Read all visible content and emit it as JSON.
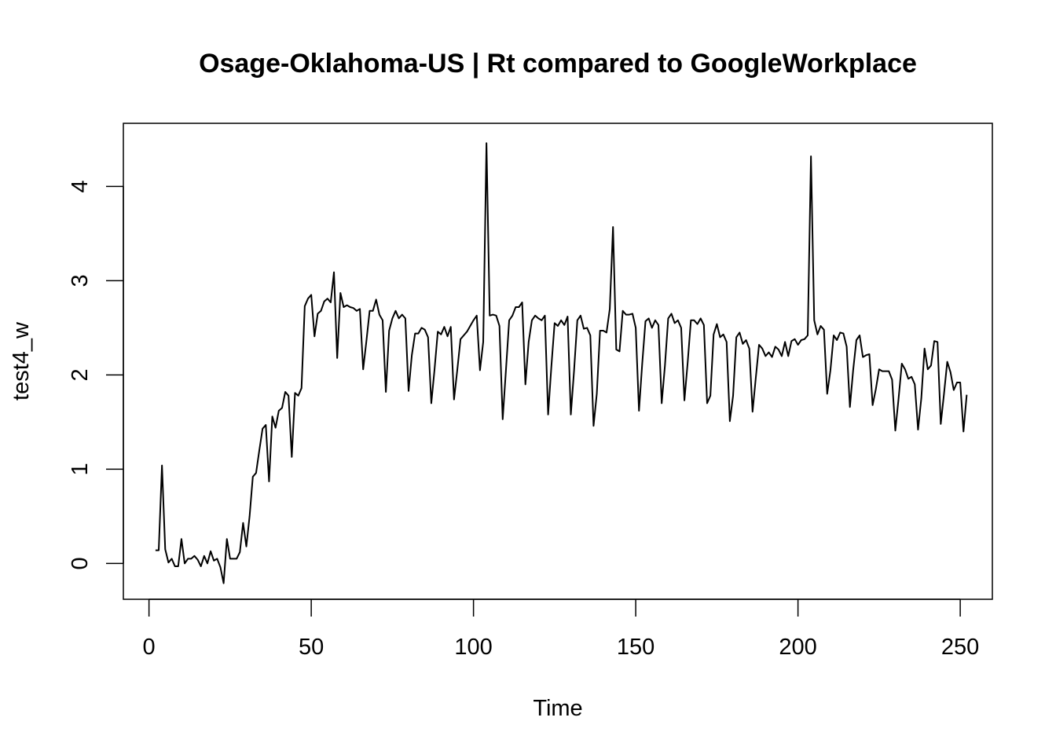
{
  "chart_data": {
    "type": "line",
    "title": "Osage-Oklahoma-US | Rt compared to GoogleWorkplace",
    "xlabel": "Time",
    "ylabel": "test4_w",
    "xlim": [
      -7.9,
      259.9
    ],
    "ylim": [
      -0.38,
      4.67
    ],
    "xticks": [
      0,
      50,
      100,
      150,
      200,
      250
    ],
    "yticks": [
      0,
      1,
      2,
      3,
      4
    ],
    "grid": false,
    "legend": "none",
    "series": [
      {
        "color": "#000000",
        "x_start": 2,
        "values": [
          0.14,
          0.14,
          1.04,
          0.15,
          0.01,
          0.05,
          -0.03,
          -0.03,
          0.26,
          0.0,
          0.05,
          0.05,
          0.08,
          0.04,
          -0.03,
          0.08,
          0.0,
          0.13,
          0.03,
          0.05,
          -0.04,
          -0.21,
          0.26,
          0.05,
          0.05,
          0.05,
          0.12,
          0.43,
          0.18,
          0.5,
          0.92,
          0.96,
          1.2,
          1.43,
          1.47,
          0.87,
          1.56,
          1.44,
          1.62,
          1.65,
          1.82,
          1.78,
          1.13,
          1.81,
          1.78,
          1.86,
          2.73,
          2.81,
          2.85,
          2.41,
          2.65,
          2.68,
          2.78,
          2.81,
          2.77,
          3.09,
          2.18,
          2.87,
          2.72,
          2.74,
          2.72,
          2.71,
          2.68,
          2.7,
          2.06,
          2.36,
          2.68,
          2.68,
          2.8,
          2.64,
          2.58,
          1.82,
          2.47,
          2.6,
          2.68,
          2.6,
          2.64,
          2.6,
          1.83,
          2.21,
          2.44,
          2.44,
          2.5,
          2.48,
          2.4,
          1.7,
          2.06,
          2.46,
          2.43,
          2.51,
          2.41,
          2.51,
          1.74,
          2.05,
          2.38,
          2.42,
          2.46,
          2.52,
          2.58,
          2.63,
          2.05,
          2.35,
          4.46,
          2.63,
          2.64,
          2.63,
          2.52,
          1.53,
          2.05,
          2.58,
          2.63,
          2.72,
          2.72,
          2.77,
          1.9,
          2.35,
          2.58,
          2.63,
          2.6,
          2.58,
          2.63,
          1.58,
          2.09,
          2.55,
          2.52,
          2.58,
          2.53,
          2.62,
          1.58,
          2.05,
          2.58,
          2.63,
          2.49,
          2.5,
          2.42,
          1.46,
          1.8,
          2.47,
          2.47,
          2.45,
          2.7,
          3.57,
          2.27,
          2.25,
          2.68,
          2.64,
          2.64,
          2.65,
          2.5,
          1.62,
          2.12,
          2.57,
          2.6,
          2.5,
          2.58,
          2.53,
          1.7,
          2.1,
          2.6,
          2.65,
          2.55,
          2.58,
          2.5,
          1.73,
          2.13,
          2.58,
          2.58,
          2.54,
          2.6,
          2.53,
          1.7,
          1.78,
          2.43,
          2.54,
          2.4,
          2.43,
          2.35,
          1.51,
          1.78,
          2.4,
          2.45,
          2.33,
          2.37,
          2.28,
          1.61,
          1.97,
          2.32,
          2.28,
          2.2,
          2.24,
          2.19,
          2.3,
          2.27,
          2.2,
          2.35,
          2.2,
          2.36,
          2.38,
          2.32,
          2.37,
          2.38,
          2.42,
          4.32,
          2.58,
          2.43,
          2.52,
          2.48,
          1.8,
          2.05,
          2.42,
          2.37,
          2.45,
          2.44,
          2.3,
          1.66,
          2.05,
          2.37,
          2.42,
          2.19,
          2.21,
          2.22,
          1.68,
          1.85,
          2.06,
          2.04,
          2.04,
          2.04,
          1.95,
          1.41,
          1.75,
          2.12,
          2.06,
          1.96,
          1.98,
          1.9,
          1.42,
          1.75,
          2.28,
          2.06,
          2.1,
          2.36,
          2.35,
          1.48,
          1.8,
          2.14,
          2.03,
          1.84,
          1.92,
          1.92,
          1.4,
          1.79
        ]
      }
    ]
  }
}
